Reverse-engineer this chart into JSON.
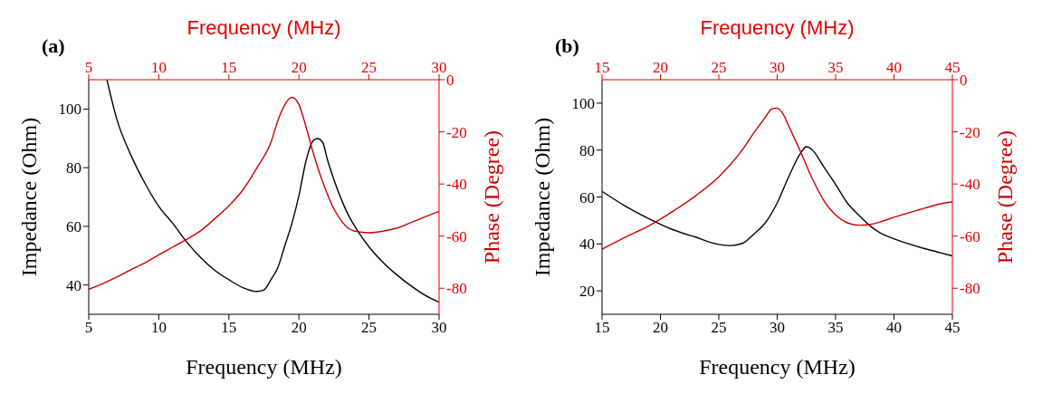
{
  "chart_data": [
    {
      "type": "line",
      "title": "(a)",
      "xlabel": "Frequency (MHz)",
      "x2label": "Frequency (MHz)",
      "ylabel": "Impedance (Ohm)",
      "y2label": "Phase (Degree)",
      "xlim": [
        5,
        30
      ],
      "xticks": [
        5,
        10,
        15,
        20,
        25,
        30
      ],
      "x2lim": [
        5,
        30
      ],
      "x2ticks": [
        5,
        10,
        15,
        20,
        25,
        30
      ],
      "ylim": [
        30,
        110
      ],
      "yticks": [
        40,
        60,
        80,
        100
      ],
      "y2lim": [
        -90,
        0
      ],
      "y2ticks": [
        0,
        -20,
        -40,
        -60,
        -80
      ],
      "series": [
        {
          "color": "#000000",
          "x": [
            6.3,
            7,
            8,
            9,
            10,
            11,
            12,
            13,
            14,
            15,
            16,
            17,
            17.5,
            18,
            18.5,
            19,
            19.5,
            20,
            20.5,
            21,
            21.3,
            21.7,
            22,
            22.5,
            23,
            23.5,
            24,
            25,
            26,
            27,
            28,
            29,
            30
          ],
          "values": [
            110,
            96.6,
            84.4,
            74.8,
            66.8,
            61,
            54.6,
            49.3,
            45,
            41.8,
            39.1,
            37.8,
            38.3,
            41.8,
            46,
            53.5,
            61,
            70.5,
            82.2,
            89.1,
            89.9,
            88.6,
            83.3,
            75.9,
            69.5,
            64.1,
            59.9,
            53,
            47.7,
            43.4,
            39.7,
            36.5,
            34.1
          ]
        },
        {
          "color": "#cc0000",
          "axis": "y2",
          "x": [
            5,
            6,
            7,
            8,
            9,
            10,
            11,
            12,
            13,
            14,
            15,
            16,
            17,
            18,
            18.5,
            19,
            19.5,
            20,
            20.5,
            21,
            21.5,
            22,
            22.5,
            23,
            23.5,
            24,
            25,
            26,
            27,
            28,
            29,
            30
          ],
          "values": [
            -80.4,
            -78.2,
            -75.7,
            -72.9,
            -70.3,
            -67.2,
            -64.2,
            -61.2,
            -57.9,
            -53.3,
            -48.4,
            -42.3,
            -33.8,
            -24.1,
            -15.6,
            -9.5,
            -6.8,
            -9.5,
            -18,
            -27.7,
            -36.2,
            -43.5,
            -49.6,
            -53.9,
            -56.9,
            -58.1,
            -58.7,
            -58.1,
            -56.9,
            -54.8,
            -52.6,
            -50.5
          ]
        }
      ]
    },
    {
      "type": "line",
      "title": "(b)",
      "xlabel": "Frequency (MHz)",
      "x2label": "Frequency (MHz)",
      "ylabel": "Impedance (Ohm)",
      "y2label": "Phase (Degree)",
      "xlim": [
        15,
        45
      ],
      "xticks": [
        15,
        20,
        25,
        30,
        35,
        40,
        45
      ],
      "x2lim": [
        15,
        45
      ],
      "x2ticks": [
        15,
        20,
        25,
        30,
        35,
        40,
        45
      ],
      "ylim": [
        10,
        110
      ],
      "yticks": [
        20,
        40,
        60,
        80,
        100
      ],
      "y2lim": [
        -90,
        0
      ],
      "y2ticks": [
        0,
        -20,
        -40,
        -60,
        -80
      ],
      "series": [
        {
          "color": "#000000",
          "x": [
            15,
            17,
            19,
            21,
            23,
            25,
            26,
            27,
            28,
            29,
            30,
            31,
            32,
            32.5,
            33,
            34,
            35,
            36,
            37,
            38,
            39,
            40,
            42,
            44,
            45
          ],
          "values": [
            62.4,
            56.1,
            50.8,
            46.2,
            42.9,
            39.8,
            39.3,
            40.2,
            44.2,
            49.1,
            57.5,
            68.8,
            78.7,
            81.4,
            80.1,
            72.8,
            65.4,
            57.5,
            52.2,
            47.5,
            44.2,
            42.2,
            38.9,
            36.2,
            34.9
          ]
        },
        {
          "color": "#cc0000",
          "axis": "y2",
          "x": [
            15,
            17,
            19,
            21,
            23,
            25,
            26,
            27,
            28,
            29,
            29.5,
            30,
            30.5,
            31,
            32,
            33,
            34,
            35,
            36,
            37,
            38,
            39,
            40,
            42,
            44,
            45
          ],
          "values": [
            -65,
            -60.4,
            -56.1,
            -50.7,
            -44.6,
            -37.3,
            -32.5,
            -27,
            -20.4,
            -14.3,
            -11.3,
            -10.9,
            -13.1,
            -17.9,
            -27.6,
            -37.9,
            -46.4,
            -51.9,
            -54.9,
            -55.8,
            -55.5,
            -54.3,
            -52.8,
            -50.1,
            -47.6,
            -46.8
          ]
        }
      ]
    }
  ]
}
